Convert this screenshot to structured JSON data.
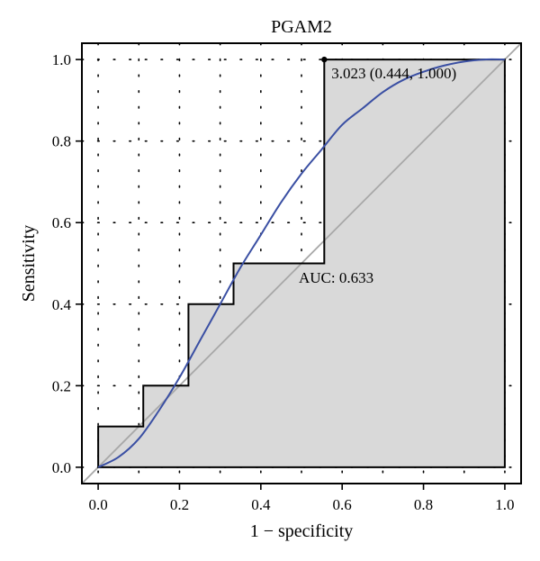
{
  "chart_data": {
    "type": "line",
    "title": "PGAM2",
    "xlabel": "1 − specificity",
    "ylabel": "Sensitivity",
    "xlim": [
      -0.04,
      1.04
    ],
    "ylim": [
      -0.04,
      1.04
    ],
    "x_ticks": [
      "0.0",
      "0.2",
      "0.4",
      "0.6",
      "0.8",
      "1.0"
    ],
    "y_ticks": [
      "0.0",
      "0.2",
      "0.4",
      "0.6",
      "0.8",
      "1.0"
    ],
    "grid": "dotted",
    "empirical_roc": {
      "x": [
        0.0,
        0.0,
        0.111,
        0.111,
        0.222,
        0.222,
        0.333,
        0.333,
        0.556,
        0.556,
        1.0,
        1.0
      ],
      "y": [
        0.0,
        0.1,
        0.1,
        0.2,
        0.2,
        0.4,
        0.4,
        0.5,
        0.5,
        1.0,
        1.0,
        0.0
      ]
    },
    "smooth_roc": {
      "x": [
        0.0,
        0.05,
        0.1,
        0.15,
        0.2,
        0.25,
        0.3,
        0.35,
        0.4,
        0.45,
        0.5,
        0.55,
        0.6,
        0.65,
        0.7,
        0.75,
        0.8,
        0.85,
        0.9,
        0.95,
        1.0
      ],
      "y": [
        0.0,
        0.025,
        0.07,
        0.14,
        0.22,
        0.31,
        0.4,
        0.49,
        0.57,
        0.65,
        0.72,
        0.78,
        0.84,
        0.88,
        0.92,
        0.95,
        0.97,
        0.985,
        0.995,
        1.0,
        1.0
      ]
    },
    "diagonal": {
      "x": [
        -0.04,
        1.04
      ],
      "y": [
        -0.04,
        1.04
      ]
    },
    "best_threshold": {
      "x": 0.556,
      "y": 1.0,
      "label": "3.023 (0.444, 1.000)"
    },
    "auc_label": "AUC: 0.633",
    "colors": {
      "smooth": "#3a4fa3",
      "diagonal": "#a8a8a8",
      "fill": "#d9d9d9"
    }
  }
}
